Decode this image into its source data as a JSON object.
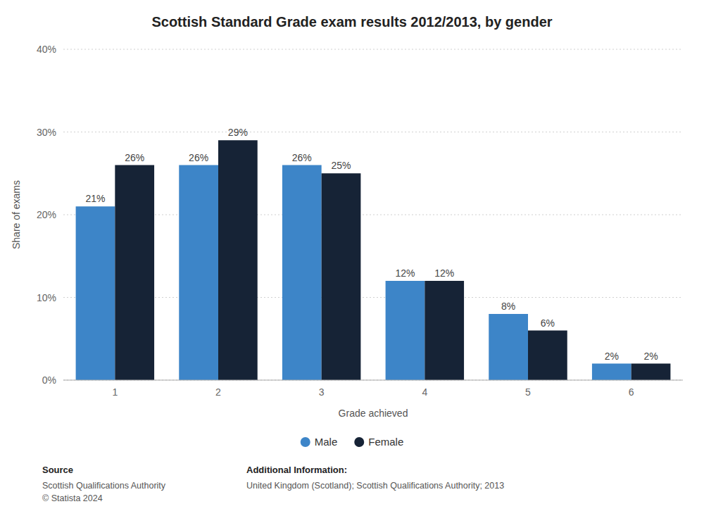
{
  "chart_data": {
    "type": "bar",
    "title": "Scottish Standard Grade exam results 2012/2013, by gender",
    "x_label": "Grade achieved",
    "y_label": "Share of exams",
    "categories": [
      1,
      2,
      3,
      4,
      5,
      6
    ],
    "series": [
      {
        "name": "Male",
        "color": "#3d85c8",
        "values": [
          21,
          26,
          26,
          12,
          8,
          2
        ],
        "value_labels": [
          "21%",
          "26%",
          "26%",
          "12%",
          "8%",
          "2%"
        ]
      },
      {
        "name": "Female",
        "color": "#162336",
        "values": [
          26,
          29,
          25,
          12,
          6,
          2
        ],
        "value_labels": [
          "26%",
          "29%",
          "25%",
          "12%",
          "6%",
          "2%"
        ]
      }
    ],
    "ylim": [
      0,
      40
    ],
    "yticks": [
      {
        "value": 0,
        "label": "0%"
      },
      {
        "value": 10,
        "label": "10%"
      },
      {
        "value": 20,
        "label": "20%"
      },
      {
        "value": 30,
        "label": "30%"
      },
      {
        "value": 40,
        "label": "40%"
      }
    ],
    "grid": true,
    "data_labels": true,
    "legend": "bottom",
    "annotations": [
      {
        "heading": "Source",
        "lines": [
          "Scottish Qualifications Authority",
          "© Statista 2024"
        ]
      },
      {
        "heading": "Additional Information:",
        "lines": [
          "United Kingdom (Scotland); Scottish Qualifications Authority; 2013"
        ]
      }
    ]
  }
}
